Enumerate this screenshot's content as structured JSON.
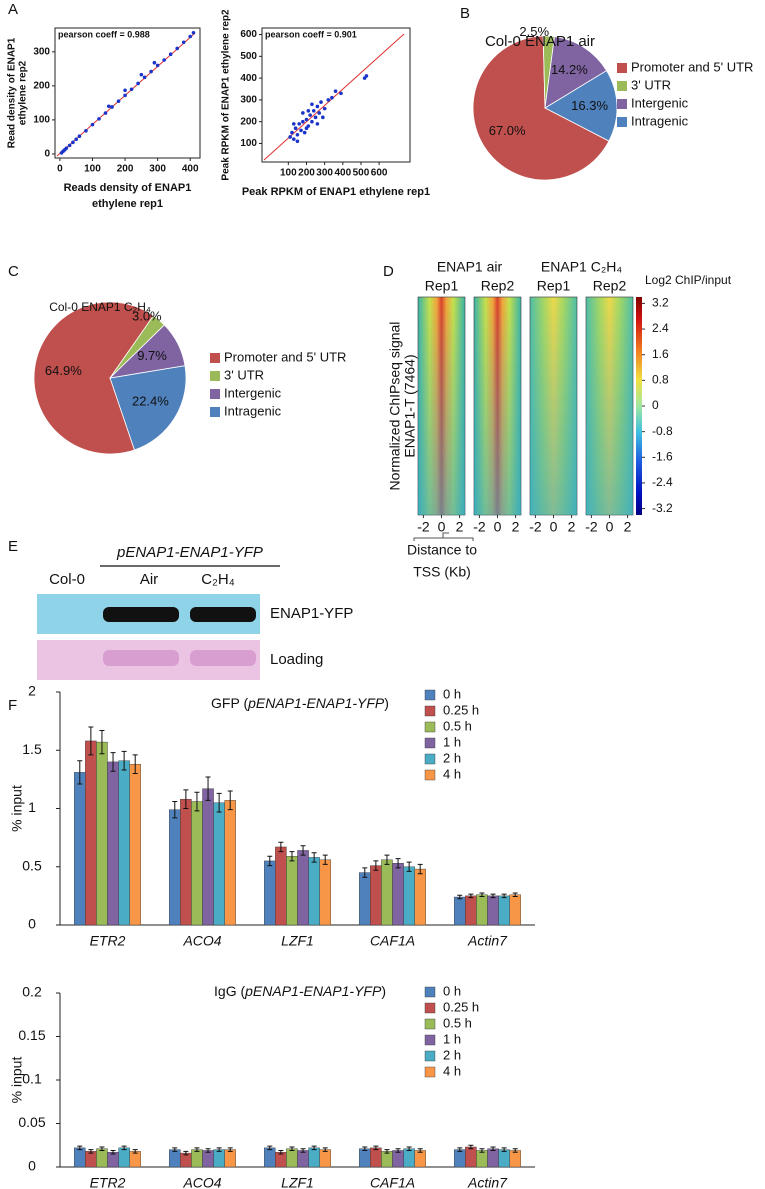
{
  "chart_data": [
    {
      "type": "scatter",
      "panel": "A",
      "title": "pearson coeff = 0.988",
      "xlabel": [
        "Reads density of ENAP1",
        "ethylene rep1"
      ],
      "ylabel": [
        "Read density of ENAP1",
        "ethylene rep2"
      ],
      "xlim": [
        -15,
        430
      ],
      "ylim": [
        -12,
        370
      ],
      "xticks": [
        0,
        100,
        200,
        300,
        400
      ],
      "yticks": [
        0,
        100,
        200,
        300
      ],
      "color": "#1a33c8",
      "x": [
        5,
        10,
        15,
        20,
        30,
        40,
        50,
        60,
        80,
        100,
        120,
        140,
        160,
        180,
        200,
        220,
        240,
        260,
        280,
        300,
        320,
        340,
        360,
        380,
        400,
        410,
        150,
        200,
        250,
        290
      ],
      "y": [
        3,
        8,
        12,
        17,
        25,
        34,
        43,
        52,
        68,
        86,
        103,
        120,
        138,
        155,
        172,
        190,
        207,
        225,
        242,
        260,
        276,
        293,
        310,
        328,
        345,
        356,
        140,
        187,
        233,
        268
      ]
    },
    {
      "type": "scatter",
      "title": "pearson coeff = 0.901",
      "xlabel": [
        "Peak RPKM of ENAP1 ethylene rep1"
      ],
      "ylabel": [
        "Peak RPKM of ENAP1 ethylene rep2"
      ],
      "xlim": [
        -45,
        770
      ],
      "ylim": [
        15,
        630
      ],
      "xticks": [
        100,
        200,
        300,
        400,
        500,
        600
      ],
      "yticks": [
        100,
        200,
        300,
        400,
        500,
        600
      ],
      "color": "#1a33c8",
      "x": [
        110,
        120,
        130,
        140,
        150,
        160,
        170,
        180,
        190,
        200,
        210,
        220,
        230,
        240,
        250,
        260,
        270,
        280,
        300,
        320,
        340,
        150,
        200,
        180,
        230,
        260,
        130,
        210,
        290,
        360,
        390,
        520,
        530
      ],
      "y": [
        130,
        150,
        120,
        170,
        140,
        190,
        160,
        200,
        150,
        210,
        180,
        230,
        200,
        250,
        220,
        270,
        240,
        290,
        260,
        300,
        310,
        110,
        170,
        240,
        280,
        190,
        190,
        250,
        220,
        340,
        330,
        400,
        410
      ]
    },
    {
      "type": "pie",
      "panel": "B",
      "title": "Col-0 ENAP1 air",
      "categories": [
        "Promoter and 5' UTR",
        "3' UTR",
        "Intergenic",
        "Intragenic"
      ],
      "values": [
        67.0,
        2.5,
        14.2,
        16.3
      ],
      "value_labels": [
        "67.0%",
        "2.5%",
        "14.2%",
        "16.3%"
      ],
      "colors": [
        "#c0504d",
        "#9bbb59",
        "#8064a2",
        "#4f81bd"
      ]
    },
    {
      "type": "pie",
      "panel": "C",
      "title": "Col-0 ENAP1 C₂H₄",
      "categories": [
        "Promoter and 5' UTR",
        "3' UTR",
        "Intergenic",
        "Intragenic"
      ],
      "values": [
        64.9,
        3.0,
        9.7,
        22.4
      ],
      "value_labels": [
        "64.9%",
        "3.0%",
        "9.7%",
        "22.4%"
      ],
      "colors": [
        "#c0504d",
        "#9bbb59",
        "#8064a2",
        "#4f81bd"
      ]
    },
    {
      "type": "heatmap",
      "panel": "D",
      "groups": [
        "ENAP1 air",
        "ENAP1 C₂H₄"
      ],
      "replicates": [
        "Rep1",
        "Rep2"
      ],
      "ylabel": [
        "Normalized ChIPseq signal",
        "ENAP1-T (7464)"
      ],
      "xlabel": [
        "Distance to",
        "TSS (Kb)"
      ],
      "xlim": [
        -2.6,
        2.6
      ],
      "xticks": [
        -2,
        0,
        2
      ],
      "colorbar_title": "Log2 ChIP/input",
      "clim": [
        -3.4,
        3.4
      ],
      "cticks": [
        3.2,
        2.4,
        1.6,
        0.8,
        0,
        -0.8,
        -1.6,
        -2.4,
        -3.2
      ]
    },
    {
      "type": "bar",
      "panel": "F",
      "title": [
        "GFP (",
        "pENAP1-ENAP1-YFP",
        ")"
      ],
      "ylabel": "% input",
      "categories": [
        "ETR2",
        "ACO4",
        "LZF1",
        "CAF1A",
        "Actin7"
      ],
      "ylim": [
        0,
        2
      ],
      "yticks": [
        0,
        0.5,
        1,
        1.5,
        2
      ],
      "series": [
        {
          "name": "0 h",
          "color": "#4f81bd",
          "values": [
            1.31,
            0.99,
            0.55,
            0.45,
            0.24
          ],
          "errors": [
            0.1,
            0.07,
            0.04,
            0.04,
            0.015
          ]
        },
        {
          "name": "0.25 h",
          "color": "#c0504d",
          "values": [
            1.58,
            1.08,
            0.67,
            0.51,
            0.25
          ],
          "errors": [
            0.12,
            0.08,
            0.04,
            0.04,
            0.015
          ]
        },
        {
          "name": "0.5 h",
          "color": "#9bbb59",
          "values": [
            1.57,
            1.06,
            0.59,
            0.56,
            0.26
          ],
          "errors": [
            0.1,
            0.08,
            0.04,
            0.04,
            0.015
          ]
        },
        {
          "name": "1 h",
          "color": "#8064a2",
          "values": [
            1.4,
            1.17,
            0.64,
            0.53,
            0.25
          ],
          "errors": [
            0.08,
            0.1,
            0.04,
            0.04,
            0.015
          ]
        },
        {
          "name": "2 h",
          "color": "#4bacc6",
          "values": [
            1.41,
            1.05,
            0.58,
            0.5,
            0.25
          ],
          "errors": [
            0.08,
            0.08,
            0.04,
            0.04,
            0.015
          ]
        },
        {
          "name": "4 h",
          "color": "#f79646",
          "values": [
            1.38,
            1.07,
            0.56,
            0.48,
            0.26
          ],
          "errors": [
            0.08,
            0.08,
            0.04,
            0.04,
            0.015
          ]
        }
      ]
    },
    {
      "type": "bar",
      "title": [
        "IgG (",
        "pENAP1-ENAP1-YFP",
        ")"
      ],
      "ylabel": "% input",
      "categories": [
        "ETR2",
        "ACO4",
        "LZF1",
        "CAF1A",
        "Actin7"
      ],
      "ylim": [
        0,
        0.2
      ],
      "yticks": [
        0,
        0.05,
        0.1,
        0.15,
        0.2
      ],
      "series": [
        {
          "name": "0 h",
          "color": "#4f81bd",
          "values": [
            0.022,
            0.02,
            0.022,
            0.021,
            0.02
          ],
          "errors": [
            0.002,
            0.002,
            0.002,
            0.002,
            0.002
          ]
        },
        {
          "name": "0.25 h",
          "color": "#c0504d",
          "values": [
            0.018,
            0.016,
            0.017,
            0.022,
            0.023
          ],
          "errors": [
            0.002,
            0.002,
            0.002,
            0.002,
            0.002
          ]
        },
        {
          "name": "0.5 h",
          "color": "#9bbb59",
          "values": [
            0.021,
            0.02,
            0.021,
            0.018,
            0.019
          ],
          "errors": [
            0.002,
            0.002,
            0.002,
            0.002,
            0.002
          ]
        },
        {
          "name": "1 h",
          "color": "#8064a2",
          "values": [
            0.017,
            0.019,
            0.019,
            0.019,
            0.021
          ],
          "errors": [
            0.002,
            0.002,
            0.002,
            0.002,
            0.002
          ]
        },
        {
          "name": "2 h",
          "color": "#4bacc6",
          "values": [
            0.022,
            0.02,
            0.022,
            0.021,
            0.02
          ],
          "errors": [
            0.002,
            0.002,
            0.002,
            0.002,
            0.002
          ]
        },
        {
          "name": "4 h",
          "color": "#f79646",
          "values": [
            0.018,
            0.02,
            0.02,
            0.019,
            0.019
          ],
          "errors": [
            0.002,
            0.002,
            0.002,
            0.002,
            0.002
          ]
        }
      ]
    }
  ],
  "blot": {
    "panel": "E",
    "construct": "pENAP1-ENAP1-YFP",
    "lanes": [
      "Col-0",
      "Air",
      "C₂H₄"
    ],
    "rows": [
      "ENAP1-YFP",
      "Loading"
    ]
  }
}
